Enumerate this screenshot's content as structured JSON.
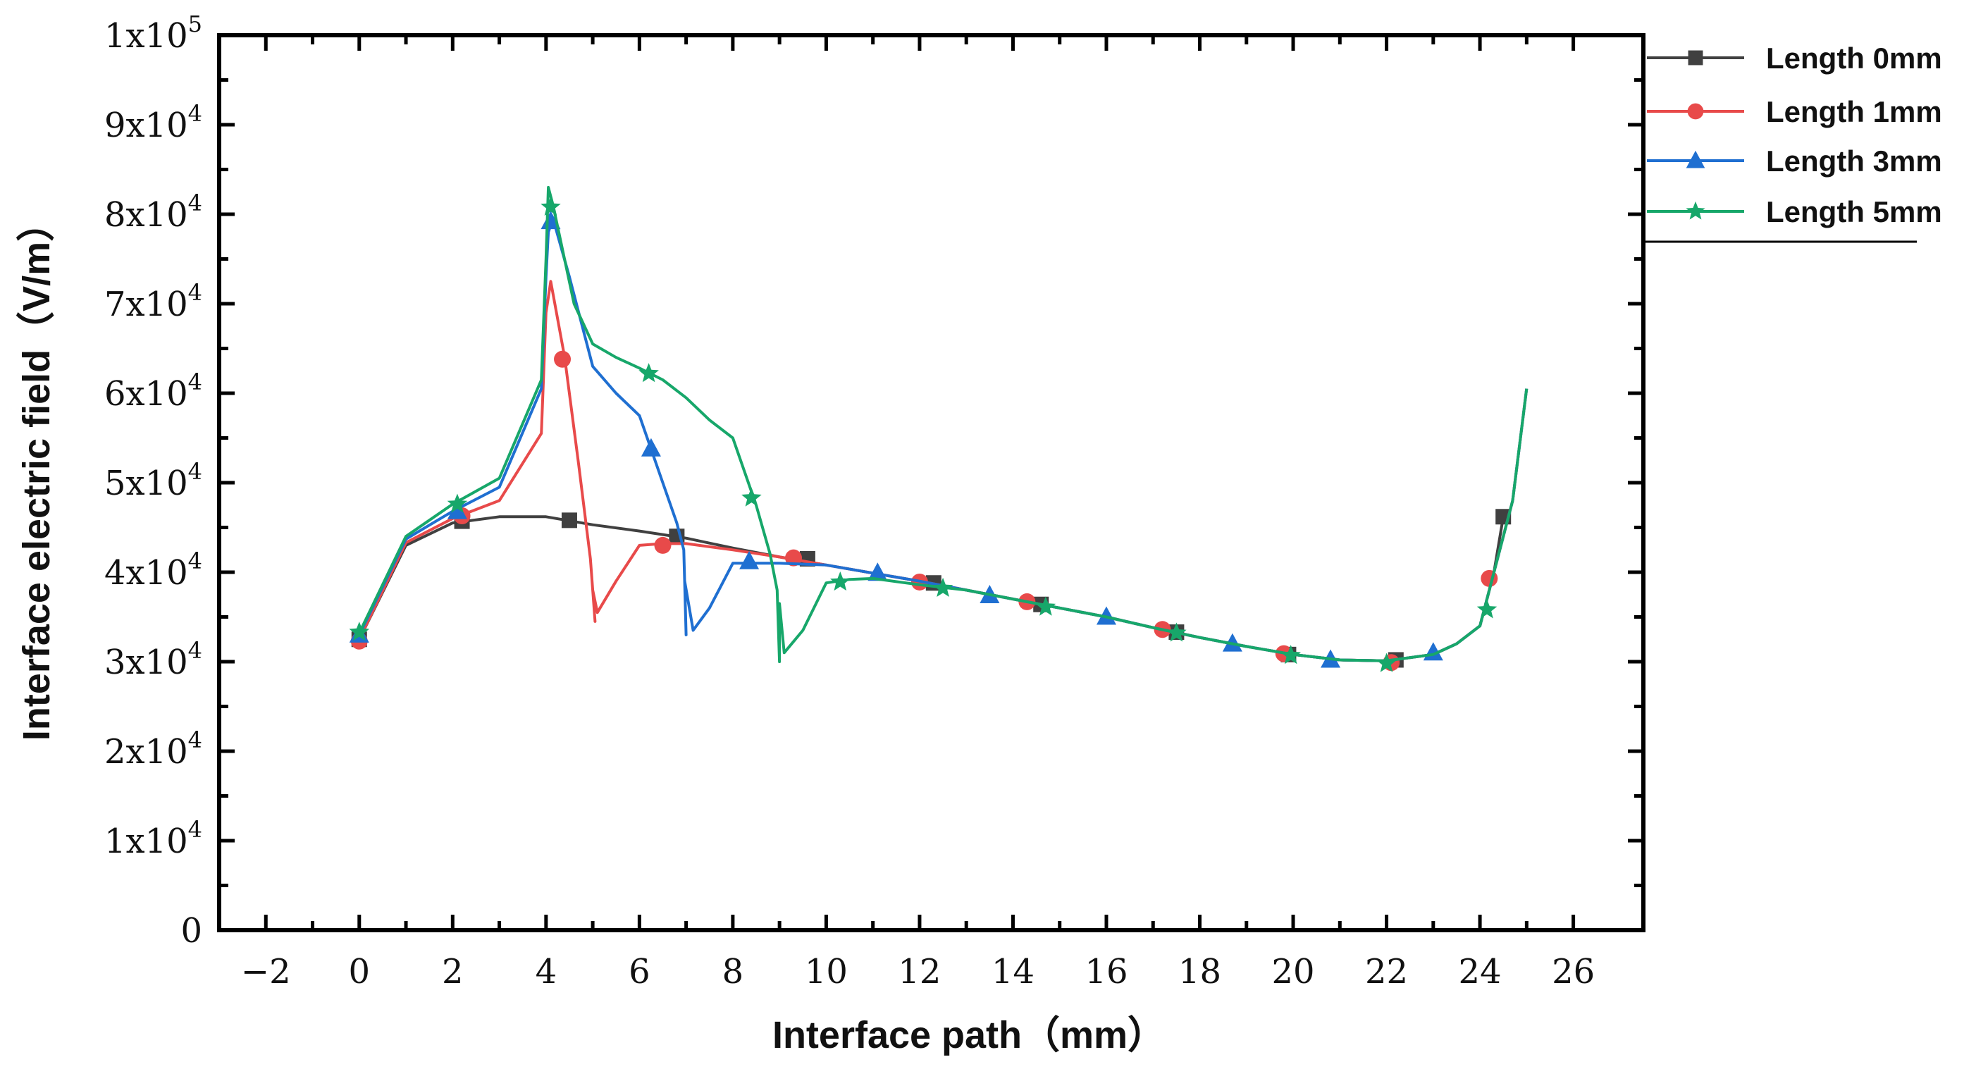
{
  "chart_data": {
    "type": "line",
    "title": "",
    "xlabel": "Interface path（mm）",
    "ylabel": "Interface electric field（V/m）",
    "xlim": [
      -3,
      27.5
    ],
    "ylim": [
      0,
      100000
    ],
    "x_ticks": [
      {
        "value": -2,
        "label": "−2"
      },
      {
        "value": 0,
        "label": "0"
      },
      {
        "value": 2,
        "label": "2"
      },
      {
        "value": 4,
        "label": "4"
      },
      {
        "value": 6,
        "label": "6"
      },
      {
        "value": 8,
        "label": "8"
      },
      {
        "value": 10,
        "label": "10"
      },
      {
        "value": 12,
        "label": "12"
      },
      {
        "value": 14,
        "label": "14"
      },
      {
        "value": 16,
        "label": "16"
      },
      {
        "value": 18,
        "label": "18"
      },
      {
        "value": 20,
        "label": "20"
      },
      {
        "value": 22,
        "label": "22"
      },
      {
        "value": 24,
        "label": "24"
      },
      {
        "value": 26,
        "label": "26"
      }
    ],
    "y_ticks": [
      {
        "value": 0,
        "mant": "0",
        "exp": ""
      },
      {
        "value": 10000,
        "mant": "1x10",
        "exp": "4"
      },
      {
        "value": 20000,
        "mant": "2x10",
        "exp": "4"
      },
      {
        "value": 30000,
        "mant": "3x10",
        "exp": "4"
      },
      {
        "value": 40000,
        "mant": "4x10",
        "exp": "4"
      },
      {
        "value": 50000,
        "mant": "5x10",
        "exp": "4"
      },
      {
        "value": 60000,
        "mant": "6x10",
        "exp": "4"
      },
      {
        "value": 70000,
        "mant": "7x10",
        "exp": "4"
      },
      {
        "value": 80000,
        "mant": "8x10",
        "exp": "4"
      },
      {
        "value": 90000,
        "mant": "9x10",
        "exp": "4"
      },
      {
        "value": 100000,
        "mant": "1x10",
        "exp": "5"
      }
    ],
    "legend_position": "top-right, outside plot",
    "series": [
      {
        "name": "Length 0mm",
        "color": "#404040",
        "marker": "square",
        "line": [
          [
            0,
            32500
          ],
          [
            1,
            43000
          ],
          [
            2,
            45500
          ],
          [
            3,
            46200
          ],
          [
            4,
            46200
          ],
          [
            5,
            45300
          ],
          [
            6,
            44600
          ],
          [
            7,
            43800
          ],
          [
            8,
            42700
          ],
          [
            9,
            41700
          ],
          [
            10,
            40800
          ],
          [
            11,
            39900
          ],
          [
            12,
            39000
          ],
          [
            13,
            38000
          ],
          [
            14,
            37000
          ],
          [
            15,
            36000
          ],
          [
            16,
            35000
          ],
          [
            17,
            33800
          ],
          [
            18,
            32700
          ],
          [
            19,
            31700
          ],
          [
            20,
            30800
          ],
          [
            21,
            30200
          ],
          [
            22,
            30100
          ],
          [
            23,
            30800
          ],
          [
            23.5,
            32000
          ],
          [
            24,
            34000
          ],
          [
            24.3,
            40000
          ],
          [
            24.5,
            46200
          ]
        ],
        "markers": [
          [
            0,
            32500
          ],
          [
            2.2,
            45700
          ],
          [
            4.5,
            45800
          ],
          [
            6.8,
            44000
          ],
          [
            9.6,
            41500
          ],
          [
            12.3,
            38800
          ],
          [
            14.6,
            36400
          ],
          [
            17.5,
            33300
          ],
          [
            19.9,
            30800
          ],
          [
            22.2,
            30200
          ],
          [
            24.5,
            46200
          ]
        ]
      },
      {
        "name": "Length 1mm",
        "color": "#e84a4a",
        "marker": "circle",
        "line": [
          [
            0,
            32500
          ],
          [
            1,
            43300
          ],
          [
            2,
            46000
          ],
          [
            3,
            48000
          ],
          [
            3.9,
            55500
          ],
          [
            4.0,
            69000
          ],
          [
            4.1,
            72500
          ],
          [
            4.4,
            64000
          ],
          [
            4.7,
            52000
          ],
          [
            4.95,
            41500
          ],
          [
            5.05,
            34500
          ],
          [
            5.0,
            38000
          ],
          [
            5.1,
            35500
          ],
          [
            5.5,
            39000
          ],
          [
            6,
            43000
          ],
          [
            6.5,
            43200
          ],
          [
            7,
            43200
          ],
          [
            8,
            42500
          ],
          [
            9,
            41700
          ],
          [
            10,
            40800
          ],
          [
            11,
            39900
          ],
          [
            12,
            39000
          ],
          [
            13,
            38000
          ],
          [
            14,
            37000
          ],
          [
            15,
            36000
          ],
          [
            16,
            35000
          ],
          [
            17,
            33800
          ],
          [
            18,
            32700
          ],
          [
            19,
            31700
          ],
          [
            20,
            30800
          ],
          [
            21,
            30200
          ],
          [
            22,
            30100
          ],
          [
            23,
            30800
          ],
          [
            23.5,
            32000
          ],
          [
            24,
            34000
          ],
          [
            24.3,
            40000
          ],
          [
            24.7,
            48000
          ],
          [
            25,
            60500
          ]
        ],
        "markers": [
          [
            0,
            32300
          ],
          [
            2.2,
            46300
          ],
          [
            4.35,
            63800
          ],
          [
            6.5,
            43000
          ],
          [
            9.3,
            41600
          ],
          [
            12,
            38900
          ],
          [
            14.3,
            36700
          ],
          [
            17.2,
            33600
          ],
          [
            19.8,
            30900
          ],
          [
            22.1,
            29900
          ],
          [
            24.2,
            39300
          ]
        ]
      },
      {
        "name": "Length 3mm",
        "color": "#1f6fd1",
        "marker": "triangle",
        "line": [
          [
            0,
            33000
          ],
          [
            1,
            43700
          ],
          [
            2,
            46800
          ],
          [
            3,
            49500
          ],
          [
            3.9,
            60500
          ],
          [
            4.0,
            73000
          ],
          [
            4.05,
            78000
          ],
          [
            4.15,
            79500
          ],
          [
            4.5,
            73000
          ],
          [
            5,
            63000
          ],
          [
            5.5,
            60000
          ],
          [
            6,
            57500
          ],
          [
            6.5,
            50000
          ],
          [
            6.8,
            45500
          ],
          [
            6.95,
            42500
          ],
          [
            7.0,
            33000
          ],
          [
            6.97,
            39000
          ],
          [
            7.15,
            33500
          ],
          [
            7.5,
            36000
          ],
          [
            8,
            41000
          ],
          [
            8.5,
            41000
          ],
          [
            9,
            41000
          ],
          [
            10,
            40800
          ],
          [
            11,
            39900
          ],
          [
            12,
            39000
          ],
          [
            13,
            38000
          ],
          [
            14,
            37000
          ],
          [
            15,
            36000
          ],
          [
            16,
            35000
          ],
          [
            17,
            33800
          ],
          [
            18,
            32700
          ],
          [
            19,
            31700
          ],
          [
            20,
            30800
          ],
          [
            21,
            30200
          ],
          [
            22,
            30100
          ],
          [
            23,
            30800
          ],
          [
            23.5,
            32000
          ],
          [
            24,
            34000
          ],
          [
            24.3,
            40000
          ],
          [
            24.7,
            48000
          ],
          [
            25,
            60500
          ]
        ],
        "markers": [
          [
            0,
            33000
          ],
          [
            2.1,
            46800
          ],
          [
            4.1,
            79200
          ],
          [
            6.25,
            53800
          ],
          [
            8.35,
            41200
          ],
          [
            11.1,
            39900
          ],
          [
            13.5,
            37400
          ],
          [
            16,
            35000
          ],
          [
            18.7,
            32000
          ],
          [
            20.8,
            30200
          ],
          [
            23,
            31000
          ]
        ]
      },
      {
        "name": "Length 5mm",
        "color": "#17a76a",
        "marker": "star",
        "line": [
          [
            0,
            33200
          ],
          [
            1,
            44000
          ],
          [
            2,
            47600
          ],
          [
            3,
            50500
          ],
          [
            3.9,
            61500
          ],
          [
            4.0,
            75000
          ],
          [
            4.05,
            83000
          ],
          [
            4.15,
            81000
          ],
          [
            4.6,
            70000
          ],
          [
            5,
            65500
          ],
          [
            5.5,
            64000
          ],
          [
            6,
            62800
          ],
          [
            6.5,
            61500
          ],
          [
            7,
            59500
          ],
          [
            7.5,
            57000
          ],
          [
            8,
            55000
          ],
          [
            8.5,
            47500
          ],
          [
            8.8,
            42000
          ],
          [
            8.95,
            38000
          ],
          [
            9.0,
            30000
          ],
          [
            9.0,
            36500
          ],
          [
            9.1,
            31000
          ],
          [
            9.5,
            33500
          ],
          [
            10,
            38800
          ],
          [
            10.5,
            39200
          ],
          [
            11,
            39300
          ],
          [
            12,
            38600
          ],
          [
            13,
            38000
          ],
          [
            14,
            37000
          ],
          [
            15,
            36000
          ],
          [
            16,
            35000
          ],
          [
            17,
            33800
          ],
          [
            18,
            32700
          ],
          [
            19,
            31700
          ],
          [
            20,
            30800
          ],
          [
            21,
            30200
          ],
          [
            22,
            30100
          ],
          [
            23,
            30800
          ],
          [
            23.5,
            32000
          ],
          [
            24,
            34000
          ],
          [
            24.3,
            40000
          ],
          [
            24.7,
            48000
          ],
          [
            25,
            60500
          ]
        ],
        "markers": [
          [
            0,
            33300
          ],
          [
            2.1,
            47600
          ],
          [
            4.1,
            80800
          ],
          [
            6.2,
            62200
          ],
          [
            8.4,
            48300
          ],
          [
            10.3,
            38900
          ],
          [
            12.5,
            38200
          ],
          [
            14.7,
            36100
          ],
          [
            17.5,
            33200
          ],
          [
            19.95,
            30700
          ],
          [
            22,
            29800
          ],
          [
            24.15,
            35800
          ]
        ]
      }
    ]
  }
}
